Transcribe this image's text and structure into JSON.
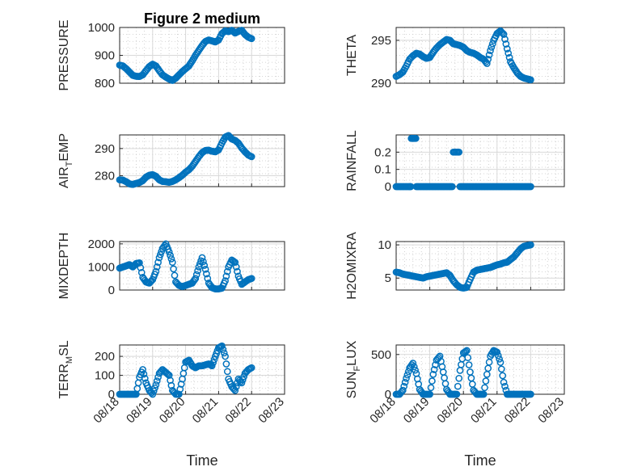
{
  "figure": {
    "title": "Figure 2 medium"
  },
  "colors": {
    "marker": "#0072BD",
    "axis": "#262626"
  },
  "chart_data": [
    {
      "type": "scatter",
      "ylabel": "PRESSURE",
      "title": "Figure 2 medium",
      "xlim": [
        0,
        5
      ],
      "ylim": [
        800,
        1000
      ],
      "yticks": [
        {
          "v": 800,
          "label": "800"
        },
        {
          "v": 900,
          "label": "900"
        },
        {
          "v": 1000,
          "label": "1000"
        }
      ],
      "x": [
        0.0,
        0.1,
        0.2,
        0.3,
        0.4,
        0.5,
        0.6,
        0.7,
        0.8,
        0.9,
        1.0,
        1.1,
        1.2,
        1.3,
        1.4,
        1.5,
        1.6,
        1.7,
        1.8,
        1.9,
        2.0,
        2.1,
        2.2,
        2.3,
        2.4,
        2.5,
        2.6,
        2.7,
        2.8,
        2.9,
        3.0,
        3.1,
        3.2,
        3.3,
        3.4,
        3.5,
        3.6,
        3.7,
        3.8,
        3.9,
        4.0
      ],
      "y": [
        865,
        862,
        852,
        840,
        828,
        825,
        824,
        830,
        845,
        860,
        868,
        862,
        845,
        830,
        822,
        815,
        810,
        818,
        830,
        842,
        852,
        862,
        880,
        900,
        918,
        935,
        950,
        955,
        952,
        948,
        955,
        978,
        988,
        985,
        990,
        980,
        986,
        990,
        975,
        965,
        960
      ]
    },
    {
      "type": "scatter",
      "ylabel": "THETA",
      "xlim": [
        0,
        5
      ],
      "ylim": [
        290,
        296.5
      ],
      "yticks": [
        {
          "v": 290,
          "label": "290"
        },
        {
          "v": 295,
          "label": "295"
        }
      ],
      "x": [
        0.0,
        0.1,
        0.2,
        0.3,
        0.4,
        0.5,
        0.6,
        0.7,
        0.8,
        0.9,
        1.0,
        1.1,
        1.2,
        1.3,
        1.4,
        1.5,
        1.6,
        1.7,
        1.8,
        1.9,
        2.0,
        2.1,
        2.2,
        2.3,
        2.4,
        2.5,
        2.6,
        2.7,
        2.8,
        2.9,
        3.0,
        3.1,
        3.2,
        3.3,
        3.4,
        3.5,
        3.6,
        3.7,
        3.8,
        3.9,
        4.0
      ],
      "y": [
        290.8,
        291.0,
        291.3,
        292.0,
        292.8,
        293.2,
        293.5,
        293.4,
        293.1,
        292.9,
        293.0,
        293.6,
        294.1,
        294.5,
        294.8,
        295.1,
        295.0,
        294.6,
        294.5,
        294.4,
        294.2,
        293.8,
        293.6,
        293.5,
        293.3,
        293.0,
        292.8,
        292.3,
        293.8,
        295.0,
        295.8,
        296.1,
        295.7,
        294.0,
        292.5,
        291.8,
        291.2,
        290.8,
        290.6,
        290.5,
        290.4
      ]
    },
    {
      "type": "scatter",
      "ylabel": "AIR_TEMP",
      "ylabel_main": "AIR",
      "ylabel_sub": "T",
      "ylabel_rest": "EMP",
      "xlim": [
        0,
        5
      ],
      "ylim": [
        276,
        295
      ],
      "yticks": [
        {
          "v": 280,
          "label": "280"
        },
        {
          "v": 290,
          "label": "290"
        }
      ],
      "x": [
        0.0,
        0.1,
        0.2,
        0.3,
        0.4,
        0.5,
        0.6,
        0.7,
        0.8,
        0.9,
        1.0,
        1.1,
        1.2,
        1.3,
        1.4,
        1.5,
        1.6,
        1.7,
        1.8,
        1.9,
        2.0,
        2.1,
        2.2,
        2.3,
        2.4,
        2.5,
        2.6,
        2.7,
        2.8,
        2.9,
        3.0,
        3.1,
        3.2,
        3.3,
        3.4,
        3.5,
        3.6,
        3.7,
        3.8,
        3.9,
        4.0
      ],
      "y": [
        278.5,
        278.4,
        277.8,
        277.0,
        276.8,
        277.2,
        277.5,
        278.2,
        279.5,
        280.2,
        280.4,
        279.8,
        278.5,
        277.9,
        277.8,
        277.6,
        277.9,
        278.5,
        279.3,
        280.2,
        281.3,
        282.2,
        283.5,
        285.2,
        287.0,
        288.5,
        289.3,
        289.4,
        289.0,
        288.8,
        289.5,
        292.0,
        294.2,
        294.8,
        293.5,
        293.0,
        292.0,
        290.2,
        288.8,
        287.6,
        287.0
      ]
    },
    {
      "type": "scatter",
      "ylabel": "RAINFALL",
      "xlim": [
        0,
        5
      ],
      "ylim": [
        0,
        0.3
      ],
      "yticks": [
        {
          "v": 0,
          "label": "0"
        },
        {
          "v": 0.1,
          "label": "0.1"
        },
        {
          "v": 0.2,
          "label": "0.2"
        }
      ],
      "x": [
        0.0,
        0.1,
        0.2,
        0.3,
        0.4,
        0.45,
        0.5,
        0.55,
        0.6,
        0.7,
        0.8,
        0.9,
        1.0,
        1.1,
        1.2,
        1.3,
        1.4,
        1.5,
        1.6,
        1.7,
        1.8,
        1.9,
        2.0,
        2.1,
        2.2,
        2.3,
        2.4,
        2.5,
        2.6,
        2.7,
        2.8,
        2.9,
        3.0,
        3.1,
        3.2,
        3.3,
        3.4,
        3.5,
        3.6,
        3.7,
        3.8,
        3.9,
        4.0
      ],
      "y": [
        0,
        0,
        0,
        0,
        0,
        0.28,
        0.28,
        0.28,
        0,
        0,
        0,
        0,
        0,
        0,
        0,
        0,
        0,
        0,
        0,
        0.2,
        0.2,
        0,
        0,
        0,
        0,
        0,
        0,
        0,
        0,
        0,
        0,
        0,
        0,
        0,
        0,
        0,
        0,
        0,
        0,
        0,
        0,
        0,
        0
      ]
    },
    {
      "type": "scatter",
      "ylabel": "MIXDEPTH",
      "xlim": [
        0,
        5
      ],
      "ylim": [
        0,
        2100
      ],
      "yticks": [
        {
          "v": 0,
          "label": "0"
        },
        {
          "v": 1000,
          "label": "1000"
        },
        {
          "v": 2000,
          "label": "2000"
        }
      ],
      "x": [
        0.0,
        0.1,
        0.2,
        0.3,
        0.4,
        0.5,
        0.6,
        0.7,
        0.8,
        0.9,
        1.0,
        1.1,
        1.2,
        1.3,
        1.4,
        1.5,
        1.6,
        1.7,
        1.8,
        1.9,
        2.0,
        2.1,
        2.2,
        2.3,
        2.4,
        2.5,
        2.6,
        2.7,
        2.8,
        2.9,
        3.0,
        3.1,
        3.2,
        3.3,
        3.4,
        3.5,
        3.6,
        3.7,
        3.8,
        3.9,
        4.0
      ],
      "y": [
        950,
        1000,
        1050,
        1100,
        1000,
        1150,
        1180,
        550,
        350,
        300,
        450,
        800,
        1400,
        1800,
        2000,
        1650,
        1200,
        350,
        200,
        150,
        200,
        250,
        300,
        500,
        1000,
        1400,
        900,
        300,
        100,
        50,
        50,
        80,
        400,
        1000,
        1300,
        1200,
        600,
        250,
        350,
        450,
        500
      ]
    },
    {
      "type": "scatter",
      "ylabel": "H2OMIXRA",
      "xlim": [
        0,
        5
      ],
      "ylim": [
        3.2,
        10.5
      ],
      "yticks": [
        {
          "v": 5,
          "label": "5"
        },
        {
          "v": 10,
          "label": "10"
        }
      ],
      "x": [
        0.0,
        0.1,
        0.2,
        0.3,
        0.4,
        0.5,
        0.6,
        0.7,
        0.8,
        0.9,
        1.0,
        1.1,
        1.2,
        1.3,
        1.4,
        1.5,
        1.6,
        1.7,
        1.8,
        1.9,
        2.0,
        2.1,
        2.2,
        2.3,
        2.4,
        2.5,
        2.6,
        2.7,
        2.8,
        2.9,
        3.0,
        3.1,
        3.2,
        3.3,
        3.4,
        3.5,
        3.6,
        3.7,
        3.8,
        3.9,
        4.0
      ],
      "y": [
        5.9,
        5.8,
        5.6,
        5.5,
        5.4,
        5.3,
        5.2,
        5.1,
        5.0,
        5.2,
        5.3,
        5.4,
        5.5,
        5.6,
        5.7,
        5.8,
        5.4,
        4.6,
        4.0,
        3.6,
        3.5,
        3.6,
        4.8,
        5.9,
        6.2,
        6.3,
        6.4,
        6.5,
        6.6,
        6.8,
        7.0,
        7.1,
        7.3,
        7.4,
        7.8,
        8.2,
        8.8,
        9.4,
        9.8,
        9.9,
        10.0
      ]
    },
    {
      "type": "scatter",
      "ylabel": "TERR_MSL",
      "ylabel_main": "TERR",
      "ylabel_sub": "M",
      "ylabel_rest": "SL",
      "xlim": [
        0,
        5
      ],
      "ylim": [
        0,
        260
      ],
      "yticks": [
        {
          "v": 0,
          "label": "0"
        },
        {
          "v": 100,
          "label": "100"
        },
        {
          "v": 200,
          "label": "200"
        }
      ],
      "xticks": [
        {
          "v": 0,
          "label": "08/18"
        },
        {
          "v": 1,
          "label": "08/19"
        },
        {
          "v": 2,
          "label": "08/20"
        },
        {
          "v": 3,
          "label": "08/21"
        },
        {
          "v": 4,
          "label": "08/22"
        },
        {
          "v": 5,
          "label": "08/23"
        }
      ],
      "xlabel": "Time",
      "x": [
        0.0,
        0.1,
        0.2,
        0.3,
        0.4,
        0.5,
        0.6,
        0.7,
        0.8,
        0.9,
        1.0,
        1.1,
        1.2,
        1.3,
        1.4,
        1.5,
        1.6,
        1.7,
        1.8,
        1.9,
        2.0,
        2.1,
        2.2,
        2.3,
        2.4,
        2.5,
        2.6,
        2.7,
        2.8,
        2.9,
        3.0,
        3.1,
        3.2,
        3.3,
        3.4,
        3.5,
        3.6,
        3.7,
        3.8,
        3.9,
        4.0
      ],
      "y": [
        0,
        0,
        0,
        0,
        0,
        0,
        90,
        130,
        60,
        20,
        0,
        50,
        110,
        130,
        115,
        100,
        20,
        0,
        0,
        80,
        170,
        180,
        150,
        140,
        150,
        150,
        155,
        160,
        150,
        200,
        245,
        255,
        200,
        80,
        40,
        20,
        80,
        60,
        110,
        130,
        140
      ]
    },
    {
      "type": "scatter",
      "ylabel": "SUN_FLUX",
      "ylabel_main": "SUN",
      "ylabel_sub": "F",
      "ylabel_rest": "LUX",
      "xlim": [
        0,
        5
      ],
      "ylim": [
        0,
        620
      ],
      "yticks": [
        {
          "v": 0,
          "label": "0"
        },
        {
          "v": 500,
          "label": "500"
        }
      ],
      "xticks": [
        {
          "v": 0,
          "label": "08/18"
        },
        {
          "v": 1,
          "label": "08/19"
        },
        {
          "v": 2,
          "label": "08/20"
        },
        {
          "v": 3,
          "label": "08/21"
        },
        {
          "v": 4,
          "label": "08/22"
        },
        {
          "v": 5,
          "label": "08/23"
        }
      ],
      "xlabel": "Time",
      "x": [
        0.0,
        0.1,
        0.2,
        0.3,
        0.4,
        0.5,
        0.6,
        0.7,
        0.8,
        0.9,
        1.0,
        1.1,
        1.2,
        1.3,
        1.4,
        1.5,
        1.6,
        1.7,
        1.8,
        1.9,
        2.0,
        2.1,
        2.2,
        2.3,
        2.4,
        2.5,
        2.6,
        2.7,
        2.8,
        2.9,
        3.0,
        3.1,
        3.2,
        3.3,
        3.4,
        3.5,
        3.6,
        3.7,
        3.8,
        3.9,
        4.0
      ],
      "y": [
        0,
        0,
        50,
        200,
        330,
        390,
        260,
        60,
        0,
        0,
        0,
        250,
        430,
        480,
        280,
        60,
        0,
        0,
        0,
        300,
        520,
        550,
        280,
        50,
        0,
        0,
        0,
        250,
        480,
        550,
        530,
        400,
        150,
        0,
        0,
        0,
        0,
        0,
        0,
        0,
        0
      ]
    }
  ]
}
